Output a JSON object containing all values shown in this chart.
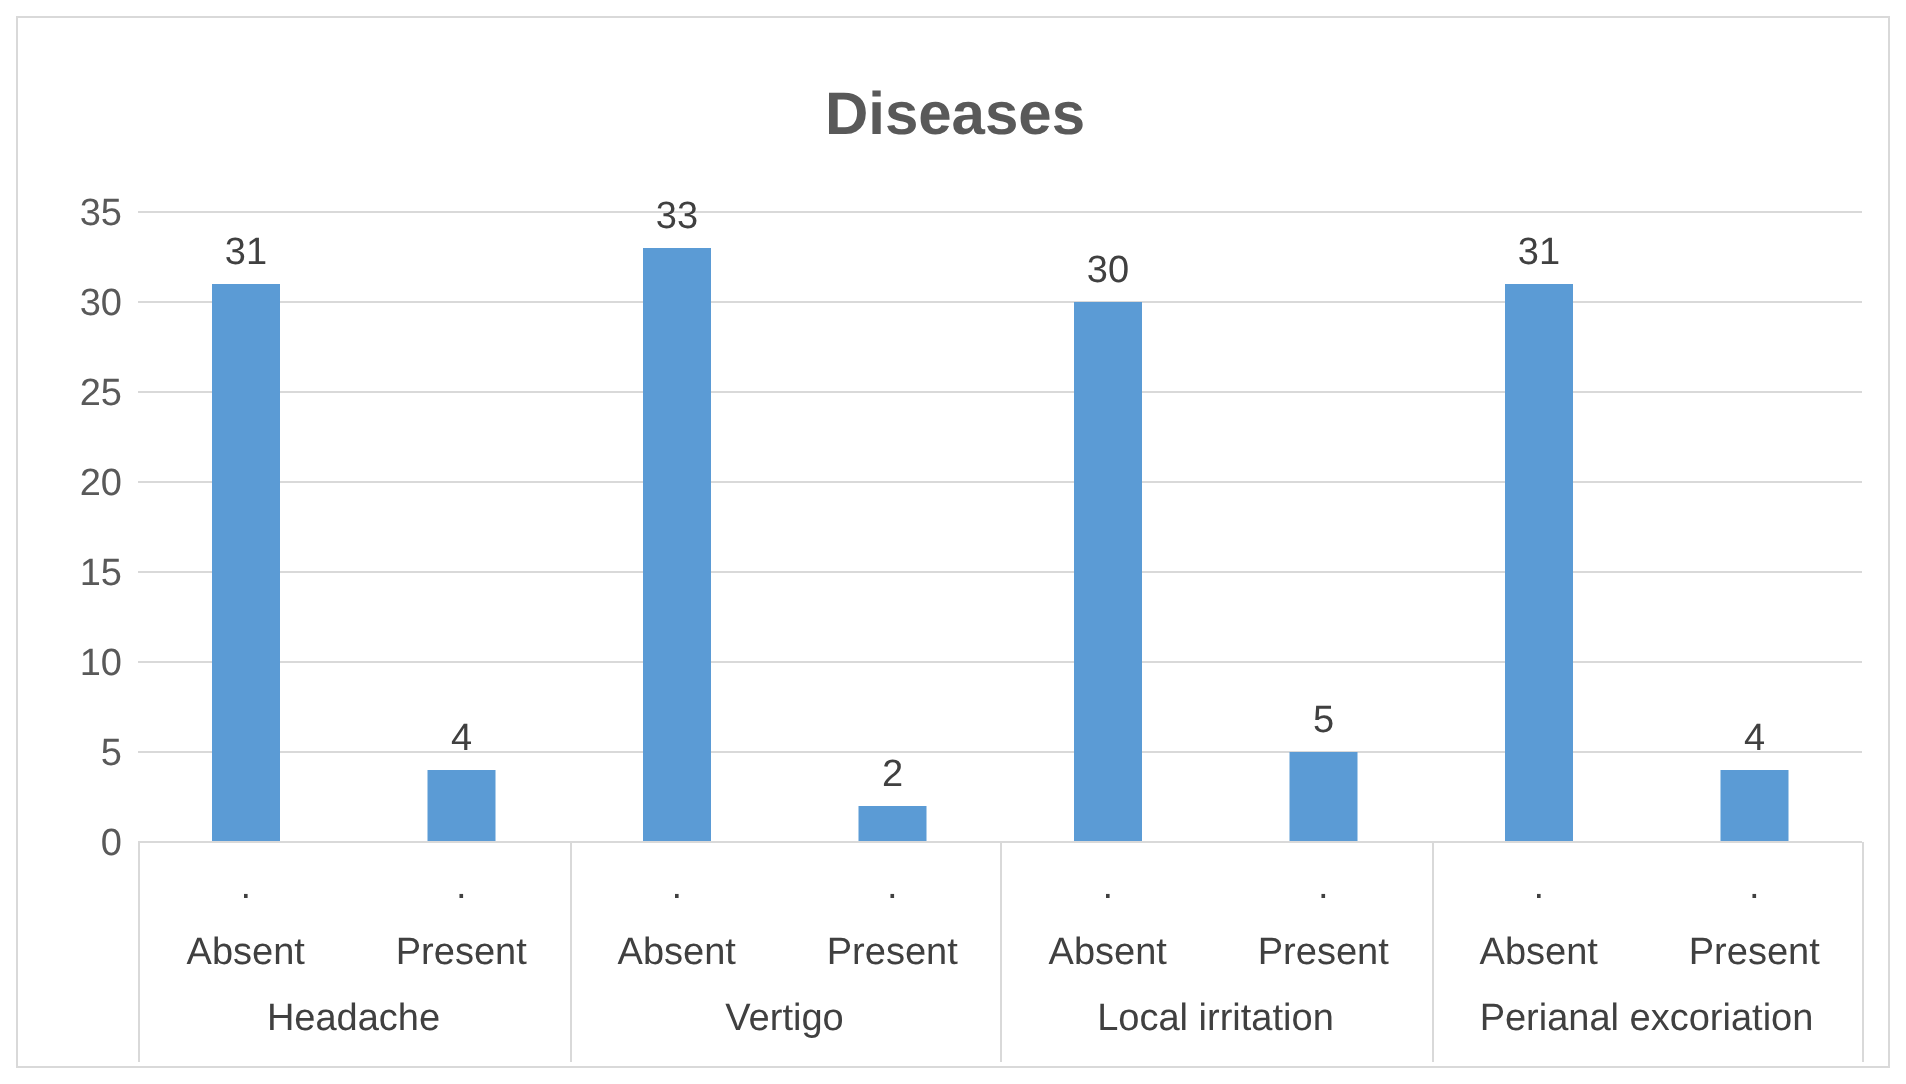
{
  "chart_data": {
    "type": "bar",
    "title": "Diseases",
    "categories": [
      ".\nAbsent",
      ".\nPresent",
      ".\nAbsent",
      ".\nPresent",
      ".\nAbsent",
      ".\nPresent",
      ".\nAbsent",
      ".\nPresent"
    ],
    "values": [
      31,
      4,
      33,
      2,
      30,
      5,
      31,
      4
    ],
    "color": "#5b9bd5",
    "ylim": [
      0,
      35
    ],
    "yticks": [
      0,
      5,
      10,
      15,
      20,
      25,
      30,
      35
    ],
    "grid": "y",
    "data_labels": true,
    "annotations": [
      "Headache",
      "Vertigo",
      "Local irritation",
      "Perianal excoriation"
    ]
  }
}
